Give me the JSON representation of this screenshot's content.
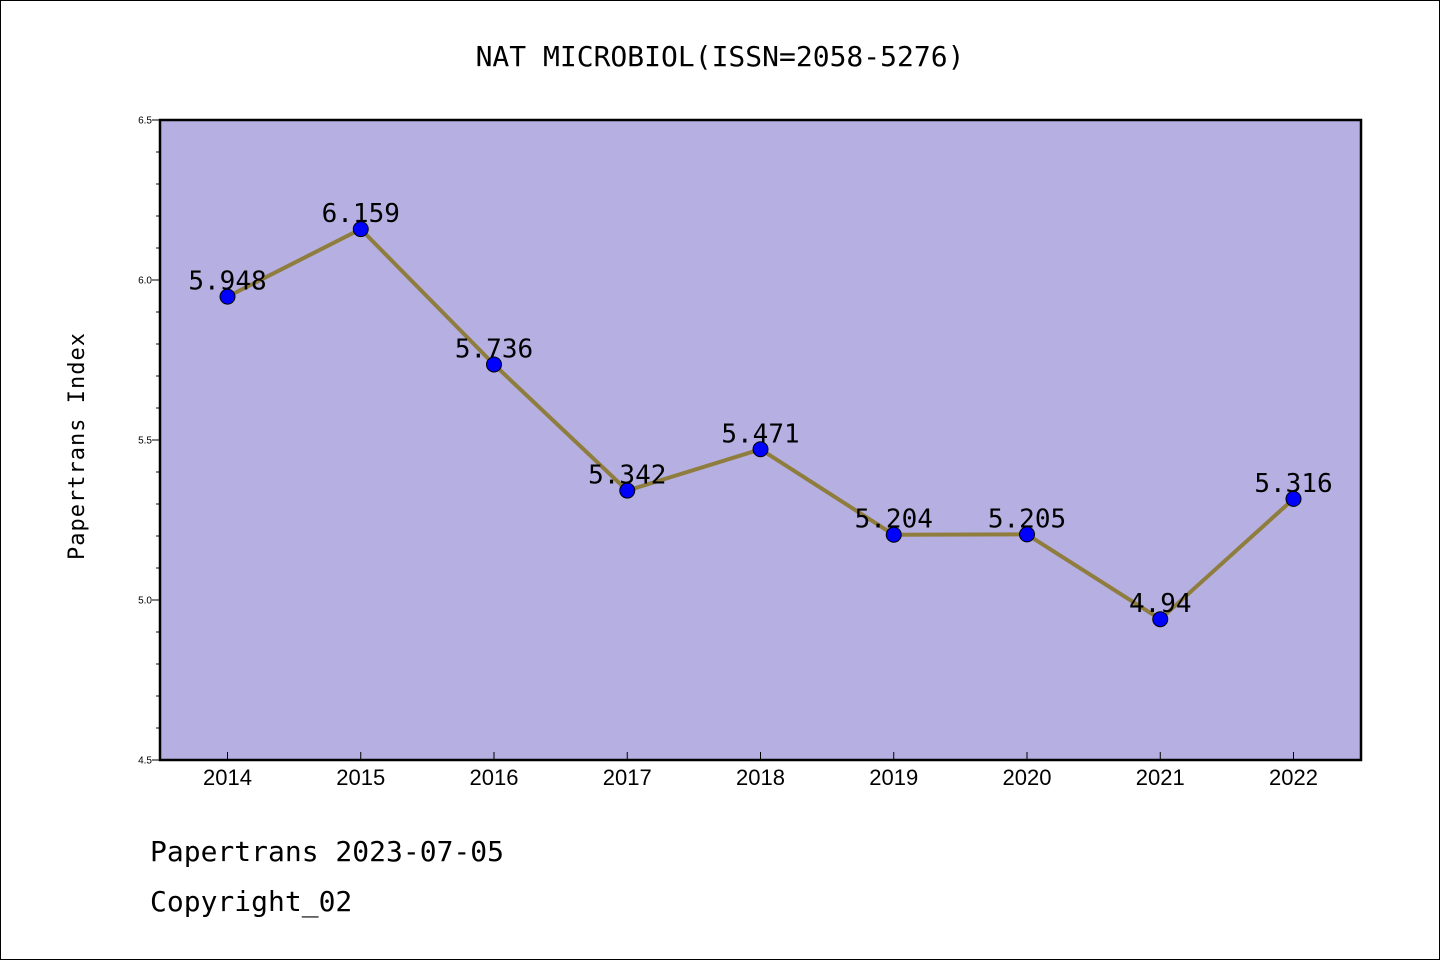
{
  "chart_data": {
    "type": "line",
    "title": "NAT MICROBIOL(ISSN=2058-5276)",
    "xlabel": "",
    "ylabel": "Papertrans Index",
    "categories": [
      "2014",
      "2015",
      "2016",
      "2017",
      "2018",
      "2019",
      "2020",
      "2021",
      "2022"
    ],
    "values": [
      5.948,
      6.159,
      5.736,
      5.342,
      5.471,
      5.204,
      5.205,
      4.94,
      5.316
    ],
    "data_labels": [
      "5.948",
      "6.159",
      "5.736",
      "5.342",
      "5.471",
      "5.204",
      "5.205",
      "4.94",
      "5.316"
    ],
    "ylim": [
      4.5,
      6.5
    ],
    "yticks": [
      4.5,
      5.0,
      5.5,
      6.0,
      6.5
    ],
    "ytick_labels": [
      "4.5",
      "5.0",
      "5.5",
      "6.0",
      "6.5"
    ],
    "grid": false,
    "colors": {
      "plot_background": "#b5afe2",
      "line": "#8f7d3e",
      "marker": "#0000ff"
    }
  },
  "footer": {
    "line1": "Papertrans 2023-07-05",
    "line2": "Copyright_02"
  }
}
